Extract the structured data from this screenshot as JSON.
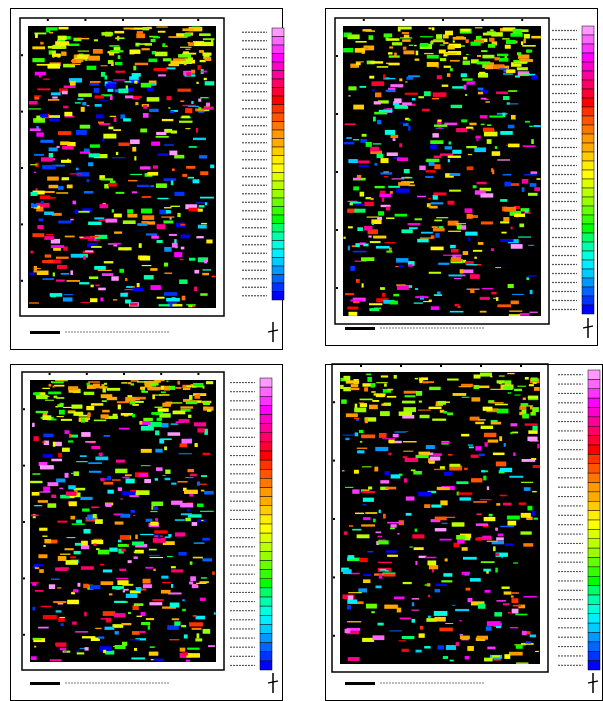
{
  "legend_colors": [
    "#ff99ff",
    "#ff66ff",
    "#ff33ff",
    "#ff00ff",
    "#ff00cc",
    "#ff0099",
    "#ff0066",
    "#ff0033",
    "#ff0000",
    "#ff3300",
    "#ff5500",
    "#ff7700",
    "#ff9900",
    "#ffaa00",
    "#ffcc00",
    "#ffee00",
    "#ffff00",
    "#ddff00",
    "#bbff00",
    "#99ff00",
    "#66ff00",
    "#33ff00",
    "#00ff00",
    "#00ff66",
    "#00ffaa",
    "#00ffdd",
    "#00eeff",
    "#00ccff",
    "#0099ff",
    "#0066ff",
    "#0033ff",
    "#0000ff"
  ]
}
